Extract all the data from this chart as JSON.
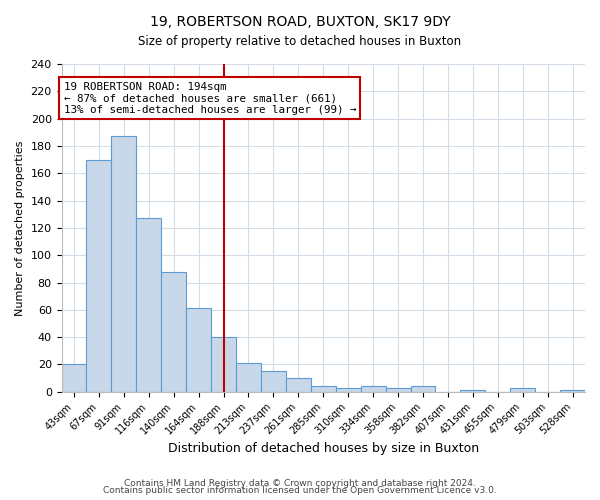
{
  "title": "19, ROBERTSON ROAD, BUXTON, SK17 9DY",
  "subtitle": "Size of property relative to detached houses in Buxton",
  "xlabel": "Distribution of detached houses by size in Buxton",
  "ylabel": "Number of detached properties",
  "bin_labels": [
    "43sqm",
    "67sqm",
    "91sqm",
    "116sqm",
    "140sqm",
    "164sqm",
    "188sqm",
    "213sqm",
    "237sqm",
    "261sqm",
    "285sqm",
    "310sqm",
    "334sqm",
    "358sqm",
    "382sqm",
    "407sqm",
    "431sqm",
    "455sqm",
    "479sqm",
    "503sqm",
    "528sqm"
  ],
  "bar_heights": [
    20,
    170,
    187,
    127,
    88,
    61,
    40,
    21,
    15,
    10,
    4,
    3,
    4,
    3,
    4,
    0,
    1,
    0,
    3,
    0,
    1
  ],
  "bar_color": "#c8d8e8",
  "bar_edge_color": "#5b9bd5",
  "vline_color": "#c00000",
  "annotation_line1": "19 ROBERTSON ROAD: 194sqm",
  "annotation_line2": "← 87% of detached houses are smaller (661)",
  "annotation_line3": "13% of semi-detached houses are larger (99) →",
  "annotation_box_edge_color": "#c00000",
  "ylim": [
    0,
    240
  ],
  "yticks": [
    0,
    20,
    40,
    60,
    80,
    100,
    120,
    140,
    160,
    180,
    200,
    220,
    240
  ],
  "footer1": "Contains HM Land Registry data © Crown copyright and database right 2024.",
  "footer2": "Contains public sector information licensed under the Open Government Licence v3.0.",
  "background_color": "#ffffff",
  "grid_color": "#d4dce8",
  "title_fontsize": 10,
  "subtitle_fontsize": 8.5,
  "ylabel_fontsize": 8,
  "xlabel_fontsize": 9
}
